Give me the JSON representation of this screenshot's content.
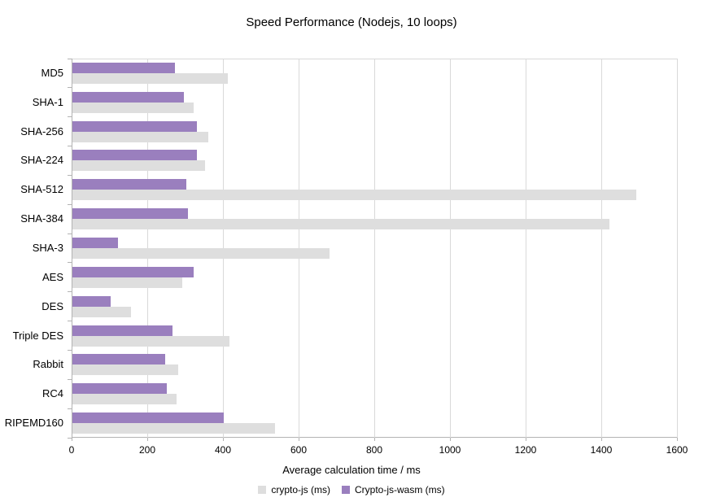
{
  "title": "Speed Performance (Nodejs, 10 loops)",
  "x_axis_title": "Average calculation time / ms",
  "colors": {
    "background": "#ffffff",
    "gridline": "#d9d9d9",
    "axis_line": "#b3b3b3",
    "text": "#000000",
    "series_crypto_js": "#dedede",
    "series_crypto_js_wasm": "#9a7fbe"
  },
  "chart_data": {
    "type": "bar",
    "orientation": "horizontal",
    "title": "Speed Performance (Nodejs, 10 loops)",
    "xlabel": "Average calculation time / ms",
    "ylabel": "",
    "xlim": [
      0,
      1600
    ],
    "x_ticks": [
      0,
      200,
      400,
      600,
      800,
      1000,
      1200,
      1400,
      1600
    ],
    "grid": true,
    "legend_position": "bottom",
    "categories": [
      "MD5",
      "SHA-1",
      "SHA-256",
      "SHA-224",
      "SHA-512",
      "SHA-384",
      "SHA-3",
      "AES",
      "DES",
      "Triple DES",
      "Rabbit",
      "RC4",
      "RIPEMD160"
    ],
    "series": [
      {
        "name": "crypto-js (ms)",
        "color": "#dedede",
        "values": [
          410,
          320,
          360,
          350,
          1490,
          1420,
          680,
          290,
          155,
          415,
          280,
          275,
          535
        ]
      },
      {
        "name": "Crypto-js-wasm (ms)",
        "color": "#9a7fbe",
        "values": [
          270,
          295,
          330,
          330,
          300,
          305,
          120,
          320,
          100,
          265,
          245,
          250,
          400
        ]
      }
    ]
  }
}
